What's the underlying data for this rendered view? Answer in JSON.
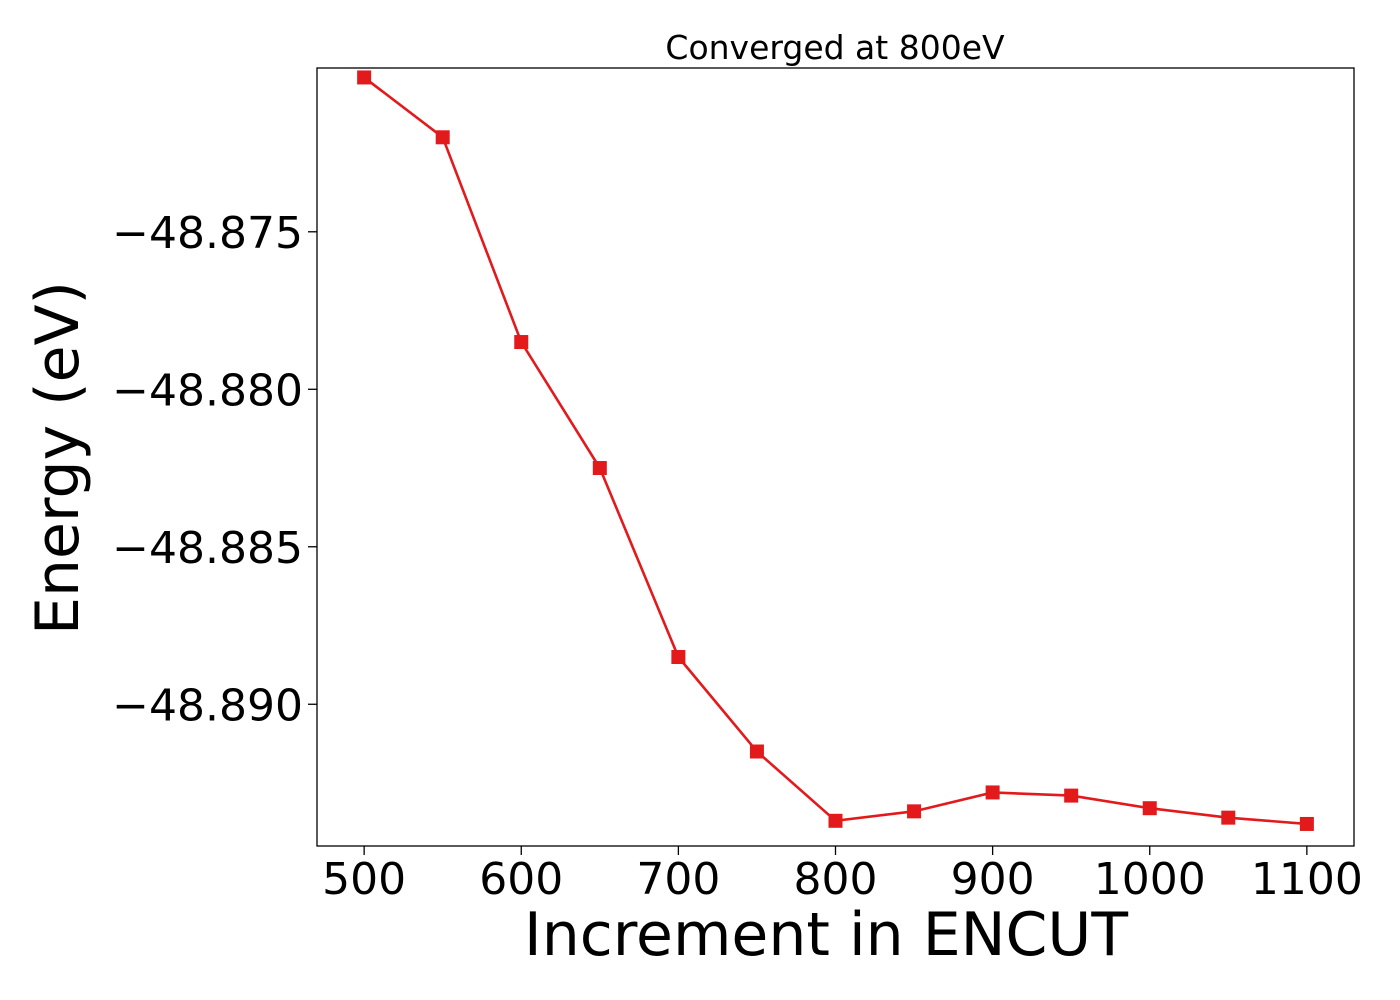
{
  "chart_data": {
    "type": "line",
    "title": "Converged at 800eV",
    "xlabel": "Increment in ENCUT",
    "ylabel": "Energy (eV)",
    "x": [
      500,
      550,
      600,
      650,
      700,
      750,
      800,
      850,
      900,
      950,
      1000,
      1050,
      1100
    ],
    "series": [
      {
        "values": [
          -48.8701,
          -48.872,
          -48.8785,
          -48.8825,
          -48.8885,
          -48.8915,
          -48.8937,
          -48.8934,
          -48.8928,
          -48.8929,
          -48.8933,
          -48.8936,
          -48.8938
        ]
      }
    ],
    "xlim": [
      470,
      1130
    ],
    "ylim": [
      -48.8945,
      -48.8698
    ],
    "xticks": [
      500,
      600,
      700,
      800,
      900,
      1000,
      1100
    ],
    "xtick_labels": [
      "500",
      "600",
      "700",
      "800",
      "900",
      "1000",
      "1100"
    ],
    "yticks": [
      -48.875,
      -48.88,
      -48.885,
      -48.89
    ],
    "ytick_labels": [
      "−48.875",
      "−48.880",
      "−48.885",
      "−48.890"
    ],
    "line_color": "#e31a1c",
    "marker": "square",
    "grid": false,
    "legend": false
  }
}
